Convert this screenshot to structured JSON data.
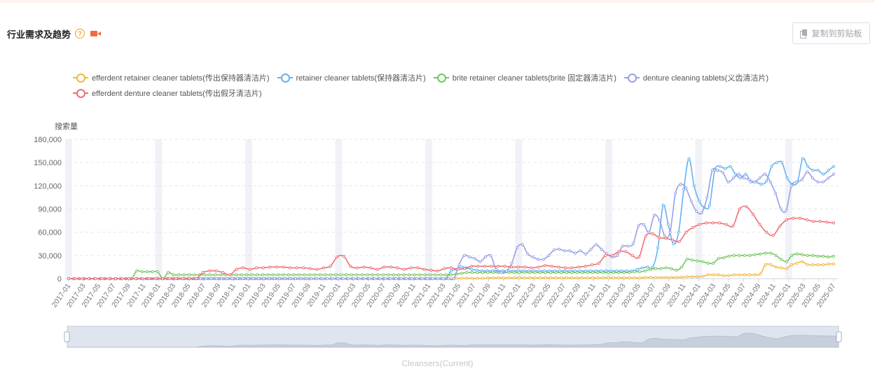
{
  "header": {
    "title": "行业需求及趋势",
    "help_icon": "question-circle-icon",
    "video_icon": "video-camera-icon"
  },
  "toolbar": {
    "copy_label": "复制到剪贴板",
    "copy_icon": "copy-icon"
  },
  "footer": {
    "label": "Cleansers(Current)"
  },
  "colors": {
    "orange": "#f5b73b",
    "blue": "#63b3f2",
    "green": "#73c75f",
    "purple": "#9aa0e6",
    "red": "#ef6f73",
    "band": "#f0f2f8",
    "grid": "#e4e6ea"
  },
  "chart_data": {
    "type": "line",
    "ylabel": "搜索量",
    "ylim": [
      0,
      180000
    ],
    "yticks": [
      "0",
      "30,000",
      "60,000",
      "90,000",
      "120,000",
      "150,000",
      "180,000"
    ],
    "ytick_values": [
      0,
      30000,
      60000,
      90000,
      120000,
      150000,
      180000
    ],
    "x_start": "2017-01",
    "x_end": "2025-07",
    "tick_labels": [
      "2017-01",
      "2017-03",
      "2017-05",
      "2017-07",
      "2017-09",
      "2017-11",
      "2018-01",
      "2018-03",
      "2018-05",
      "2018-07",
      "2018-09",
      "2018-11",
      "2019-01",
      "2019-03",
      "2019-05",
      "2019-07",
      "2019-09",
      "2019-11",
      "2020-01",
      "2020-03",
      "2020-05",
      "2020-07",
      "2020-09",
      "2020-11",
      "2021-01",
      "2021-03",
      "2021-05",
      "2021-07",
      "2021-09",
      "2021-11",
      "2022-01",
      "2022-03",
      "2022-05",
      "2022-07",
      "2022-09",
      "2022-11",
      "2023-01",
      "2023-03",
      "2023-05",
      "2023-07",
      "2023-09",
      "2023-11",
      "2024-01",
      "2024-03",
      "2024-05",
      "2024-07",
      "2024-09",
      "2024-11",
      "2025-01",
      "2025-03",
      "2025-05",
      "2025-07"
    ],
    "january_bands": true,
    "series": [
      {
        "name": "efferdent retainer cleaner tablets(传出保持器清洁片)",
        "color": "#f5b73b",
        "values": [
          0,
          0,
          0,
          0,
          0,
          0,
          0,
          0,
          0,
          0,
          0,
          0,
          0,
          0,
          0,
          0,
          0,
          0,
          0,
          0,
          0,
          0,
          0,
          0,
          0,
          0,
          0,
          0,
          0,
          0,
          0,
          0,
          0,
          0,
          0,
          0,
          0,
          0,
          0,
          0,
          0,
          0,
          0,
          0,
          0,
          0,
          0,
          0,
          0,
          0,
          0,
          0,
          0,
          0,
          0,
          0,
          0,
          0,
          0,
          0,
          0,
          0,
          0,
          0,
          0,
          0,
          0,
          0,
          0,
          0,
          0,
          0,
          0,
          0,
          500,
          500,
          500,
          500,
          500,
          500,
          1000,
          1000,
          1000,
          1000,
          1000,
          1000,
          1000,
          1000,
          1000,
          1000,
          1000,
          1000,
          1000,
          1000,
          1000,
          1000,
          1000,
          1000,
          1000,
          1000,
          1000,
          1000,
          1000,
          1000,
          1000,
          1000,
          1000,
          1000,
          1000,
          1000,
          1500,
          1500,
          1500,
          1500,
          1500,
          1500,
          1500,
          2000,
          2500,
          2500,
          2500,
          3000,
          5000,
          5000,
          5000,
          4000,
          4000,
          5000,
          5000,
          5000,
          5000,
          5000,
          6000,
          18000,
          18000,
          15000,
          14000,
          13000,
          18000,
          20000,
          22000,
          18000,
          18000,
          18000,
          18000,
          19000,
          19000
        ]
      },
      {
        "name": "retainer cleaner tablets(保持器清洁片)",
        "color": "#63b3f2",
        "values": [
          0,
          0,
          0,
          0,
          0,
          0,
          0,
          0,
          0,
          0,
          0,
          0,
          0,
          0,
          0,
          0,
          0,
          0,
          0,
          0,
          0,
          0,
          0,
          0,
          0,
          0,
          0,
          0,
          0,
          0,
          0,
          0,
          0,
          0,
          0,
          0,
          0,
          0,
          0,
          0,
          0,
          0,
          0,
          0,
          0,
          0,
          0,
          0,
          0,
          0,
          0,
          0,
          0,
          0,
          0,
          0,
          0,
          0,
          0,
          0,
          0,
          0,
          0,
          0,
          0,
          0,
          0,
          0,
          0,
          0,
          0,
          0,
          0,
          0,
          10000,
          12000,
          15000,
          14000,
          12000,
          11000,
          10000,
          10000,
          10000,
          10000,
          10000,
          10000,
          10000,
          10000,
          10000,
          10000,
          10000,
          10000,
          10000,
          10000,
          10000,
          10000,
          10000,
          10000,
          10000,
          10000,
          10000,
          10000,
          10000,
          10000,
          10000,
          10000,
          10000,
          10000,
          10000,
          10000,
          12000,
          14000,
          15000,
          15000,
          40000,
          95000,
          70000,
          45000,
          60000,
          115000,
          155000,
          120000,
          100000,
          92000,
          95000,
          140000,
          145000,
          142000,
          145000,
          135000,
          130000,
          135000,
          125000,
          125000,
          122000,
          126000,
          145000,
          150000,
          150000,
          130000,
          122000,
          125000,
          155000,
          145000,
          140000,
          140000,
          135000,
          140000,
          145000
        ]
      },
      {
        "name": "brite retainer cleaner tablets(brite 固定器清洁片)",
        "color": "#73c75f",
        "values": [
          0,
          0,
          0,
          0,
          0,
          0,
          0,
          0,
          0,
          0,
          0,
          0,
          0,
          10000,
          9000,
          9000,
          9000,
          9000,
          0,
          8000,
          5000,
          5000,
          5000,
          5000,
          5000,
          5000,
          5000,
          5000,
          5000,
          5000,
          5000,
          5000,
          5000,
          5000,
          5000,
          5000,
          5000,
          5000,
          5000,
          5000,
          5000,
          5000,
          5000,
          5000,
          5000,
          5000,
          5000,
          5000,
          5000,
          5000,
          5000,
          5000,
          5000,
          5000,
          5000,
          5000,
          5000,
          5000,
          5000,
          5000,
          5000,
          5000,
          5000,
          5000,
          5000,
          5000,
          5000,
          5000,
          5000,
          5000,
          5000,
          5000,
          5000,
          5000,
          6000,
          7000,
          8000,
          8000,
          8000,
          8000,
          8000,
          8000,
          8000,
          8000,
          8000,
          8000,
          8000,
          8000,
          8000,
          8000,
          8000,
          8000,
          8000,
          8000,
          8000,
          8000,
          8000,
          8000,
          8000,
          8000,
          8000,
          8000,
          8000,
          8000,
          8000,
          8000,
          8000,
          8000,
          9000,
          9000,
          10000,
          12000,
          13000,
          13000,
          14000,
          13000,
          11000,
          15000,
          25000,
          24000,
          23000,
          22000,
          20000,
          20000,
          26000,
          27000,
          29000,
          30000,
          30000,
          30000,
          30000,
          31000,
          32000,
          33000,
          33000,
          30000,
          25000,
          22000,
          30000,
          32000,
          31000,
          30000,
          30000,
          29000,
          29000,
          28000,
          29000
        ]
      },
      {
        "name": "denture cleaning tablets(义齿清洁片)",
        "color": "#9aa0e6",
        "values": [
          0,
          0,
          0,
          0,
          0,
          0,
          0,
          0,
          0,
          0,
          0,
          0,
          0,
          0,
          0,
          0,
          0,
          0,
          0,
          0,
          0,
          0,
          0,
          0,
          0,
          0,
          0,
          0,
          0,
          0,
          0,
          0,
          0,
          0,
          0,
          0,
          0,
          0,
          0,
          0,
          0,
          0,
          0,
          0,
          0,
          0,
          0,
          0,
          0,
          0,
          0,
          0,
          0,
          0,
          0,
          0,
          0,
          0,
          0,
          0,
          0,
          0,
          0,
          0,
          0,
          0,
          0,
          0,
          0,
          0,
          0,
          0,
          0,
          0,
          18000,
          30000,
          28000,
          26000,
          22000,
          28000,
          30000,
          12000,
          8000,
          10000,
          20000,
          40000,
          44000,
          32000,
          28000,
          25000,
          25000,
          30000,
          37000,
          38000,
          36000,
          36000,
          33000,
          36000,
          32000,
          38000,
          44000,
          38000,
          32000,
          28000,
          30000,
          42000,
          42000,
          45000,
          68000,
          70000,
          60000,
          82000,
          75000,
          55000,
          60000,
          110000,
          122000,
          117000,
          100000,
          87000,
          85000,
          105000,
          140000,
          140000,
          137000,
          125000,
          130000,
          135000,
          130000,
          128000,
          125000,
          130000,
          135000,
          125000,
          110000,
          90000,
          88000,
          120000,
          125000,
          128000,
          138000,
          130000,
          125000,
          125000,
          130000,
          135000
        ]
      },
      {
        "name": "efferdent denture cleaner tablets(传出假牙清洁片)",
        "color": "#ef6f73",
        "values": [
          0,
          0,
          0,
          0,
          0,
          0,
          0,
          0,
          0,
          0,
          0,
          0,
          0,
          0,
          0,
          0,
          0,
          0,
          0,
          0,
          8000,
          10000,
          10000,
          8000,
          5000,
          12000,
          14000,
          12000,
          14000,
          14000,
          15000,
          15000,
          15000,
          14000,
          14000,
          14000,
          13000,
          12000,
          14000,
          16000,
          28000,
          29000,
          16000,
          14000,
          15000,
          14000,
          12000,
          15000,
          15000,
          14000,
          12000,
          14000,
          14000,
          12000,
          11000,
          10000,
          13000,
          14000,
          12000,
          13000,
          16000,
          16000,
          16000,
          16000,
          16000,
          16000,
          15000,
          15000,
          15000,
          14000,
          15000,
          17000,
          16000,
          15000,
          14000,
          14000,
          15000,
          16000,
          18000,
          20000,
          30000,
          30000,
          35000,
          35000,
          30000,
          28000,
          55000,
          58000,
          53000,
          52000,
          50000,
          48000,
          60000,
          66000,
          70000,
          72000,
          72000,
          72000,
          70000,
          68000,
          90000,
          93000,
          83000,
          70000,
          60000,
          56000,
          68000,
          76000,
          78000,
          78000,
          76000,
          74000,
          74000,
          73000,
          72000
        ]
      }
    ]
  }
}
